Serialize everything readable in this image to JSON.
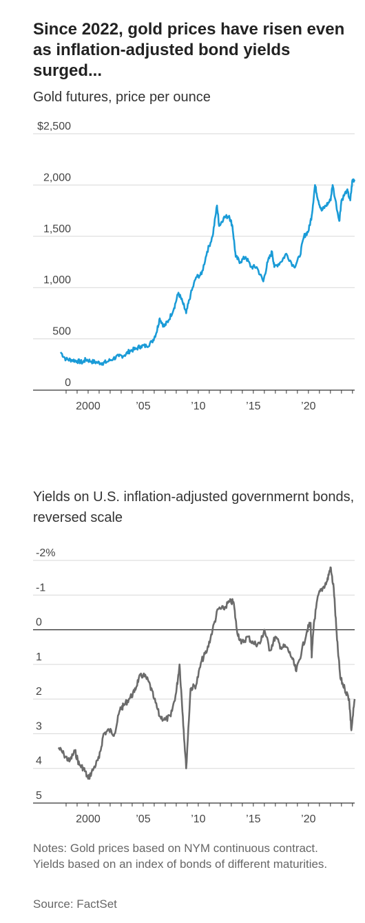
{
  "headline": "Since 2022, gold prices have risen even as inflation-adjusted bond yields surged...",
  "notes": "Notes: Gold prices based on NYM continuous contract. Yields based on an index of bonds of different maturities.",
  "source": "Source: FactSet",
  "colors": {
    "gold_line": "#1a9bd7",
    "yield_line": "#6b6b6b",
    "grid": "#d7d7d7",
    "axis": "#333333"
  },
  "chart_data": [
    {
      "type": "line",
      "title": "Gold futures, price per ounce",
      "ylim": [
        0,
        2500
      ],
      "xlim": [
        1995,
        2024.2
      ],
      "y_ticks": [
        {
          "value": 0,
          "label": "0"
        },
        {
          "value": 500,
          "label": "500"
        },
        {
          "value": 1000,
          "label": "1,000"
        },
        {
          "value": 1500,
          "label": "1,500"
        },
        {
          "value": 2000,
          "label": "2,000"
        },
        {
          "value": 2500,
          "label": "$2,500"
        }
      ],
      "x_ticks": [
        {
          "value": 2000,
          "label": "2000"
        },
        {
          "value": 2005,
          "label": "’05"
        },
        {
          "value": 2010,
          "label": "’10"
        },
        {
          "value": 2015,
          "label": "’15"
        },
        {
          "value": 2020,
          "label": "’20"
        }
      ],
      "grid": true,
      "series": [
        {
          "x": [
            1997.5,
            1998.0,
            1998.5,
            1999.0,
            1999.5,
            1999.8,
            2000.3,
            2000.8,
            2001.3,
            2001.7,
            2002.3,
            2002.8,
            2003.3,
            2003.8,
            2004.3,
            2004.8,
            2005.3,
            2005.8,
            2006.2,
            2006.5,
            2006.9,
            2007.3,
            2007.8,
            2008.2,
            2008.6,
            2008.9,
            2009.3,
            2009.8,
            2010.3,
            2010.8,
            2011.3,
            2011.7,
            2011.9,
            2012.3,
            2012.8,
            2013.1,
            2013.4,
            2013.8,
            2014.3,
            2014.8,
            2015.3,
            2015.9,
            2016.3,
            2016.7,
            2016.9,
            2017.5,
            2018.0,
            2018.7,
            2019.2,
            2019.6,
            2020.0,
            2020.3,
            2020.6,
            2020.9,
            2021.2,
            2021.6,
            2022.0,
            2022.2,
            2022.8,
            2023.0,
            2023.5,
            2023.8,
            2024.0,
            2024.2
          ],
          "y": [
            370,
            300,
            295,
            285,
            270,
            300,
            280,
            270,
            265,
            275,
            310,
            330,
            340,
            385,
            400,
            430,
            430,
            470,
            560,
            700,
            620,
            680,
            800,
            950,
            850,
            750,
            930,
            1100,
            1130,
            1350,
            1500,
            1800,
            1600,
            1680,
            1700,
            1600,
            1300,
            1250,
            1300,
            1200,
            1200,
            1060,
            1250,
            1350,
            1200,
            1250,
            1330,
            1200,
            1300,
            1500,
            1550,
            1700,
            2000,
            1850,
            1750,
            1800,
            1850,
            2000,
            1650,
            1850,
            1950,
            1850,
            2050,
            2050
          ]
        }
      ]
    },
    {
      "type": "line",
      "title": "Yields on U.S. inflation-adjusted governmernt bonds, reversed scale",
      "ylim": [
        -2,
        5
      ],
      "y_reversed": true,
      "xlim": [
        1995,
        2024.2
      ],
      "y_ticks": [
        {
          "value": -2,
          "label": "-2%"
        },
        {
          "value": -1,
          "label": "-1"
        },
        {
          "value": 0,
          "label": "0"
        },
        {
          "value": 1,
          "label": "1"
        },
        {
          "value": 2,
          "label": "2"
        },
        {
          "value": 3,
          "label": "3"
        },
        {
          "value": 4,
          "label": "4"
        },
        {
          "value": 5,
          "label": "5"
        }
      ],
      "x_ticks": [
        {
          "value": 2000,
          "label": "2000"
        },
        {
          "value": 2005,
          "label": "’05"
        },
        {
          "value": 2010,
          "label": "’10"
        },
        {
          "value": 2015,
          "label": "’15"
        },
        {
          "value": 2020,
          "label": "’20"
        }
      ],
      "grid": true,
      "series": [
        {
          "x": [
            1997.3,
            1997.8,
            1998.3,
            1998.8,
            1999.2,
            1999.6,
            2000.0,
            2000.5,
            2001.0,
            2001.4,
            2001.9,
            2002.4,
            2002.9,
            2003.2,
            2003.7,
            2004.2,
            2004.6,
            2005.0,
            2005.5,
            2006.0,
            2006.5,
            2007.0,
            2007.5,
            2008.0,
            2008.3,
            2008.6,
            2008.9,
            2009.3,
            2009.8,
            2010.3,
            2010.8,
            2011.3,
            2011.8,
            2012.3,
            2012.8,
            2013.2,
            2013.5,
            2013.9,
            2014.5,
            2015.0,
            2015.6,
            2016.0,
            2016.5,
            2017.0,
            2017.5,
            2018.0,
            2018.5,
            2018.9,
            2019.4,
            2019.9,
            2020.2,
            2020.3,
            2020.5,
            2020.9,
            2021.3,
            2021.7,
            2022.0,
            2022.3,
            2022.6,
            2022.9,
            2023.3,
            2023.7,
            2023.9,
            2024.2
          ],
          "y": [
            3.4,
            3.6,
            3.8,
            3.5,
            3.9,
            4.0,
            4.3,
            4.0,
            3.7,
            3.0,
            2.9,
            3.0,
            2.3,
            2.2,
            2.0,
            1.8,
            1.4,
            1.3,
            1.5,
            2.0,
            2.5,
            2.6,
            2.5,
            1.8,
            1.0,
            2.5,
            4.0,
            1.7,
            1.6,
            0.9,
            0.6,
            0.0,
            -0.6,
            -0.6,
            -0.8,
            -0.8,
            0.0,
            0.4,
            0.2,
            0.4,
            0.4,
            0.0,
            0.6,
            0.2,
            0.5,
            0.5,
            0.8,
            1.2,
            0.6,
            0.0,
            -0.2,
            0.8,
            -0.2,
            -1.0,
            -1.2,
            -1.4,
            -1.8,
            -1.2,
            0.3,
            1.4,
            1.7,
            2.0,
            2.9,
            2.0
          ]
        }
      ]
    }
  ]
}
